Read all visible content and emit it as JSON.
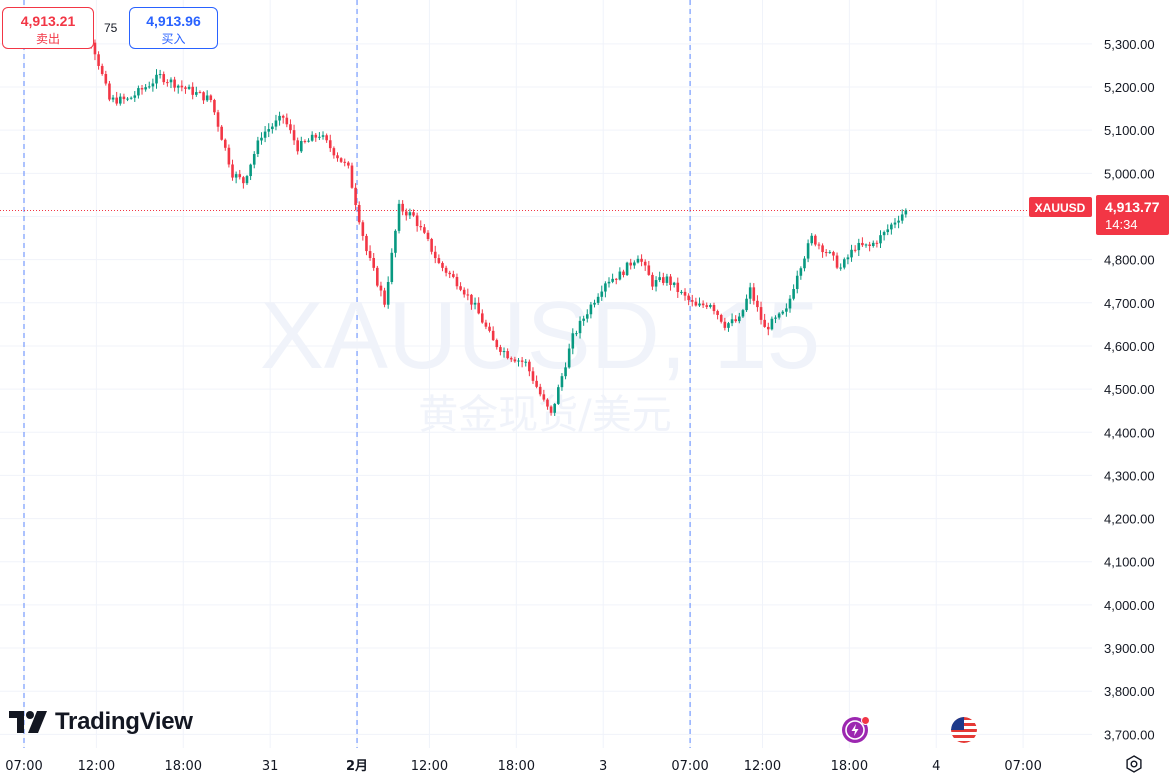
{
  "chart_data": {
    "type": "candlestick",
    "symbol": "XAUUSD",
    "watermark_symbol": "XAUUSD, 15",
    "watermark_name": "黄金现货/美元",
    "ylim": [
      3680,
      5390
    ],
    "y_ticks": [
      "5,300.00",
      "5,200.00",
      "5,100.00",
      "5,000.00",
      "4,800.00",
      "4,700.00",
      "4,600.00",
      "4,500.00",
      "4,400.00",
      "4,300.00",
      "4,200.00",
      "4,100.00",
      "4,000.00",
      "3,900.00",
      "3,800.00",
      "3,700.00"
    ],
    "y_tick_values": [
      5300,
      5200,
      5100,
      5000,
      4800,
      4700,
      4600,
      4500,
      4400,
      4300,
      4200,
      4100,
      4000,
      3900,
      3800,
      3700
    ],
    "x_ticks": [
      {
        "label": "07:00",
        "i": 0,
        "bold": false
      },
      {
        "label": "12:00",
        "i": 20,
        "bold": false
      },
      {
        "label": "18:00",
        "i": 44,
        "bold": false
      },
      {
        "label": "31",
        "i": 68,
        "bold": false
      },
      {
        "label": "2月",
        "i": 92,
        "bold": true
      },
      {
        "label": "12:00",
        "i": 112,
        "bold": false
      },
      {
        "label": "18:00",
        "i": 136,
        "bold": false
      },
      {
        "label": "3",
        "i": 160,
        "bold": false
      },
      {
        "label": "07:00",
        "i": 184,
        "bold": false
      },
      {
        "label": "12:00",
        "i": 204,
        "bold": false
      },
      {
        "label": "18:00",
        "i": 228,
        "bold": false
      },
      {
        "label": "4",
        "i": 252,
        "bold": false
      },
      {
        "label": "07:00",
        "i": 276,
        "bold": false
      }
    ],
    "session_breaks": [
      0,
      92,
      184
    ],
    "bars_per_day": 92,
    "interval": "15",
    "series": [
      {
        "name": "XAUUSD",
        "ohlc": []
      }
    ],
    "price_levels": {
      "close": 4913.77,
      "close_label": "4,913.77",
      "countdown": "14:34"
    },
    "colors": {
      "up": "#089981",
      "down": "#f23645",
      "grid": "#f0f3fa",
      "session": "#2962ff",
      "text": "#131722"
    }
  },
  "toolbar": {
    "sell_price": "4,913.21",
    "sell_label": "卖出",
    "spread": "75",
    "buy_price": "4,913.96",
    "buy_label": "买入"
  },
  "branding": {
    "logo_text": "TradingView"
  },
  "icons": {
    "flash": "lightning-icon",
    "events": "us-flag-icon",
    "settings": "gear-icon"
  }
}
